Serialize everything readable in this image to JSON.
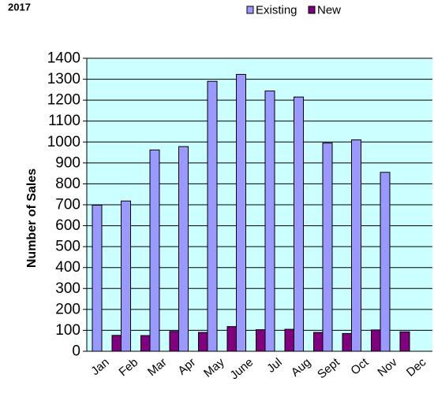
{
  "chart_data": {
    "type": "bar",
    "title": "2017",
    "xlabel": "",
    "ylabel": "Number of Sales",
    "categories": [
      "Jan",
      "Feb",
      "Mar",
      "Apr",
      "May",
      "June",
      "Jul",
      "Aug",
      "Sept",
      "Oct",
      "Nov",
      "Dec"
    ],
    "series": [
      {
        "name": "Existing",
        "color": "#9999ff",
        "values": [
          698,
          718,
          962,
          978,
          1290,
          1323,
          1244,
          1215,
          995,
          1010,
          855,
          null
        ]
      },
      {
        "name": "New",
        "color": "#800080",
        "values": [
          76,
          75,
          95,
          90,
          118,
          103,
          105,
          90,
          85,
          102,
          93,
          null
        ]
      }
    ],
    "ylim": [
      0,
      1400
    ],
    "yticks": [
      0,
      100,
      200,
      300,
      400,
      500,
      600,
      700,
      800,
      900,
      1000,
      1100,
      1200,
      1300,
      1400
    ],
    "grid": true,
    "legend": "top-right",
    "plot_background": "#ccffff"
  }
}
